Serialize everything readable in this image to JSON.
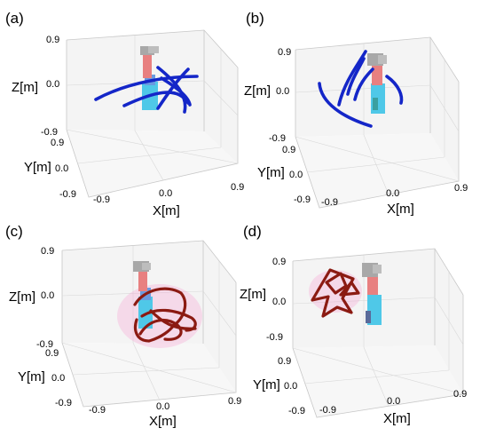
{
  "panels": [
    {
      "label": "(a)",
      "axes": {
        "z": "Z[m]",
        "y": "Y[m]",
        "x": "X[m]"
      },
      "ticks": {
        "z": [
          "0.9",
          "0.0",
          "-0.9"
        ],
        "y": [
          "0.9",
          "0.0",
          "-0.9"
        ],
        "x": [
          "-0.9",
          "0.0",
          "0.9"
        ]
      }
    },
    {
      "label": "(b)",
      "axes": {
        "z": "Z[m]",
        "y": "Y[m]",
        "x": "X[m]"
      },
      "ticks": {
        "z": [
          "0.9",
          "0.0",
          "-0.9"
        ],
        "y": [
          "0.9",
          "0.0",
          "-0.9"
        ],
        "x": [
          "-0.9",
          "0.0",
          "0.9"
        ]
      }
    },
    {
      "label": "(c)",
      "axes": {
        "z": "Z[m]",
        "y": "Y[m]",
        "x": "X[m]"
      },
      "ticks": {
        "z": [
          "0.9",
          "0.0",
          "-0.9"
        ],
        "y": [
          "0.9",
          "0.0",
          "-0.9"
        ],
        "x": [
          "-0.9",
          "0.0",
          "0.9"
        ]
      }
    },
    {
      "label": "(d)",
      "axes": {
        "z": "Z[m]",
        "y": "Y[m]",
        "x": "X[m]"
      },
      "ticks": {
        "z": [
          "0.9",
          "0.0",
          "-0.9"
        ],
        "y": [
          "0.9",
          "0.0",
          "-0.9"
        ],
        "x": [
          "-0.9",
          "0.0",
          "0.9"
        ]
      }
    }
  ],
  "colors": {
    "trajectory_top": "#1426c8",
    "trajectory_bottom": "#8b1a12",
    "robot_base": "#4fc8e8",
    "robot_link": "#e88080",
    "robot_joint": "#a8a8a8",
    "highlight": "#f7a6d4"
  }
}
